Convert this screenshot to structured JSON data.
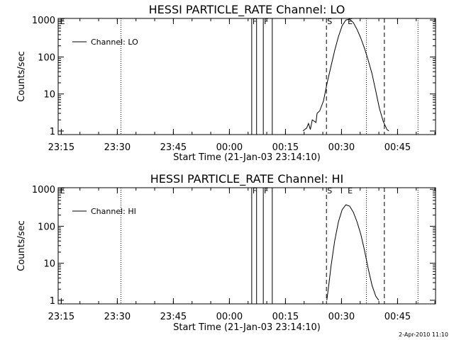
{
  "chart_data": [
    {
      "type": "line",
      "title": "HESSI PARTICLE_RATE Channel: LO",
      "xlabel": "Start Time (21-Jan-03 23:14:10)",
      "ylabel": "Counts/sec",
      "yscale": "log",
      "xlim": [
        0,
        101
      ],
      "ylim": [
        0.8,
        1100
      ],
      "x_ticks": [
        {
          "x": 0.83,
          "label": "23:15"
        },
        {
          "x": 15.83,
          "label": "23:30"
        },
        {
          "x": 30.83,
          "label": "23:45"
        },
        {
          "x": 45.83,
          "label": "00:00"
        },
        {
          "x": 60.83,
          "label": "00:15"
        },
        {
          "x": 75.83,
          "label": "00:30"
        },
        {
          "x": 90.83,
          "label": "00:45"
        }
      ],
      "y_ticks": [
        {
          "y": 1,
          "label": "1"
        },
        {
          "y": 10,
          "label": "10"
        },
        {
          "y": 100,
          "label": "100"
        },
        {
          "y": 1000,
          "label": "1000"
        }
      ],
      "legend": {
        "position": "top-left",
        "entries": [
          "Channel: LO"
        ]
      },
      "dotted_lines": [
        16.8,
        82.5,
        96.3
      ],
      "dashed_lines": [
        71.8,
        87.3
      ],
      "solid_lines": [
        51.8,
        53.1,
        54.9,
        57.3
      ],
      "markers": [
        {
          "x": 0.3,
          "label": "E"
        },
        {
          "x": 51.8,
          "label": "F"
        },
        {
          "x": 54.9,
          "label": "F"
        },
        {
          "x": 71.8,
          "label": "S"
        },
        {
          "x": 77.3,
          "label": "E"
        }
      ],
      "series": [
        {
          "name": "Channel: LO",
          "x": [
            65.5,
            66.5,
            67.0,
            67.5,
            68.0,
            69.0,
            69.3,
            70.0,
            71.0,
            72.0,
            73.0,
            74.0,
            75.0,
            76.0,
            77.0,
            78.0,
            79.0,
            80.0,
            81.0,
            82.0,
            83.0,
            84.0,
            85.0,
            86.0,
            87.0,
            88.0,
            88.5
          ],
          "y": [
            1,
            1.2,
            1.6,
            1.1,
            2.0,
            1.7,
            3.0,
            3.5,
            6.5,
            20,
            55,
            150,
            350,
            700,
            1000,
            1050,
            850,
            550,
            320,
            170,
            80,
            35,
            12,
            4,
            1.8,
            1.1,
            1.0
          ]
        }
      ]
    },
    {
      "type": "line",
      "title": "HESSI PARTICLE_RATE Channel: HI",
      "xlabel": "Start Time (21-Jan-03 23:14:10)",
      "ylabel": "Counts/sec",
      "yscale": "log",
      "xlim": [
        0,
        101
      ],
      "ylim": [
        0.8,
        1100
      ],
      "x_ticks": [
        {
          "x": 0.83,
          "label": "23:15"
        },
        {
          "x": 15.83,
          "label": "23:30"
        },
        {
          "x": 30.83,
          "label": "23:45"
        },
        {
          "x": 45.83,
          "label": "00:00"
        },
        {
          "x": 60.83,
          "label": "00:15"
        },
        {
          "x": 75.83,
          "label": "00:30"
        },
        {
          "x": 90.83,
          "label": "00:45"
        }
      ],
      "y_ticks": [
        {
          "y": 1,
          "label": "1"
        },
        {
          "y": 10,
          "label": "10"
        },
        {
          "y": 100,
          "label": "100"
        },
        {
          "y": 1000,
          "label": "1000"
        }
      ],
      "legend": {
        "position": "top-left",
        "entries": [
          "Channel: HI"
        ]
      },
      "dotted_lines": [
        16.8,
        82.5,
        96.3
      ],
      "dashed_lines": [
        71.8,
        87.3
      ],
      "solid_lines": [
        51.8,
        53.1,
        54.9,
        57.3
      ],
      "markers": [
        {
          "x": 0.3,
          "label": "E"
        },
        {
          "x": 51.8,
          "label": "F"
        },
        {
          "x": 54.9,
          "label": "F"
        },
        {
          "x": 71.8,
          "label": "S"
        },
        {
          "x": 77.3,
          "label": "E"
        }
      ],
      "series": [
        {
          "name": "Channel: HI",
          "x": [
            71.9,
            72.5,
            73.0,
            74.0,
            75.0,
            76.0,
            77.0,
            78.0,
            79.0,
            80.0,
            81.0,
            82.0,
            83.0,
            84.0,
            85.0,
            85.8
          ],
          "y": [
            1,
            3,
            8,
            40,
            130,
            280,
            380,
            350,
            240,
            130,
            60,
            22,
            7,
            2.5,
            1.3,
            1
          ]
        }
      ]
    }
  ],
  "footer": {
    "stamp": "2-Apr-2010 11:10"
  }
}
